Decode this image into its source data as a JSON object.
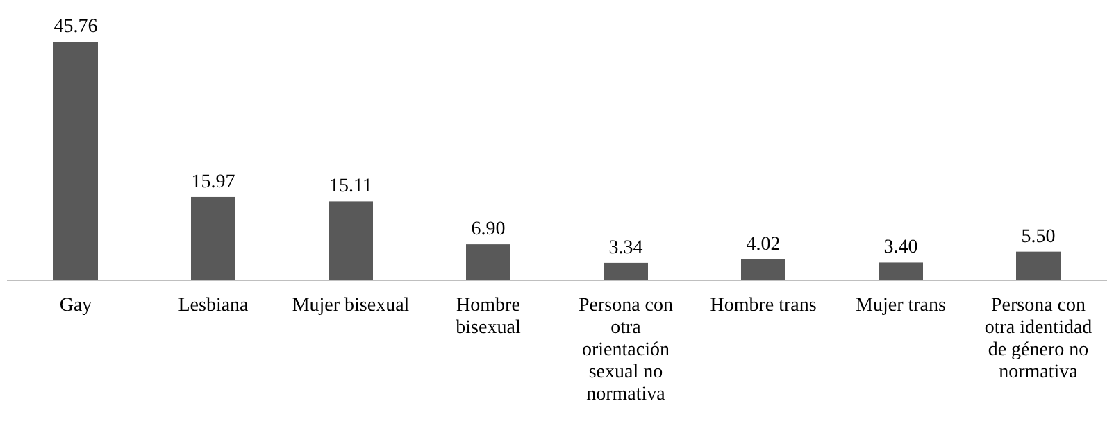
{
  "chart_data": {
    "type": "bar",
    "categories": [
      "Gay",
      "Lesbiana",
      "Mujer bisexual",
      "Hombre bisexual",
      "Persona con otra orientación sexual no normativa",
      "Hombre trans",
      "Mujer trans",
      "Persona con otra identidad de género no normativa"
    ],
    "values": [
      45.76,
      15.97,
      15.11,
      6.9,
      3.34,
      4.02,
      3.4,
      5.5
    ],
    "value_labels": [
      "45.76",
      "15.97",
      "15.11",
      "6.90",
      "3.34",
      "4.02",
      "3.40",
      "5.50"
    ],
    "color": "#595959"
  }
}
